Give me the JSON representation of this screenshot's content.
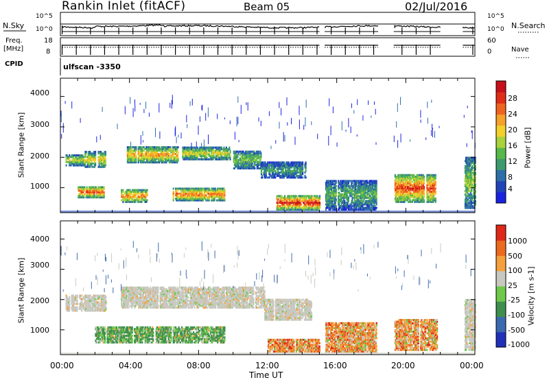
{
  "header": {
    "station": "Rankin Inlet (fitACF)",
    "beam": "Beam 05",
    "date": "02/Jul/2016"
  },
  "top_strips": {
    "nsky_label": "N.Sky",
    "nsearch_label": "N.Search",
    "nsky_ticks": [
      "10^5",
      "10^0"
    ],
    "nsearch_ticks": [
      "10^5",
      "10^0"
    ],
    "freq_label_1": "Freq.",
    "freq_label_2": "[MHz]",
    "freq_ticks": [
      "18",
      "8"
    ],
    "nave_label": "Nave",
    "nave_ticks": [
      "60",
      "0"
    ],
    "cpid_label": "CPID",
    "cpid_value": "ulfscan -3350"
  },
  "chart_data": [
    {
      "type": "heatmap",
      "quantity": "Power",
      "ylabel": "Slant Range [km]",
      "ylim": [
        180,
        4600
      ],
      "yticks": [
        "4000",
        "3000",
        "2000",
        "1000"
      ],
      "colorbar_label": "Power [dB]",
      "colorbar_ticks": [
        "28",
        "24",
        "20",
        "16",
        "12",
        "8",
        "4"
      ],
      "colorbar_colors": [
        "#1a22e0",
        "#2244b8",
        "#2e6fa8",
        "#3d9a6e",
        "#58b84a",
        "#a9d23c",
        "#f2d12c",
        "#f5a12a",
        "#ee6420",
        "#e12c18",
        "#c8101a"
      ],
      "features": [
        {
          "x0": 0.3,
          "x1": 1.4,
          "r0": 1700,
          "r1": 2050,
          "level": 0.55
        },
        {
          "x0": 1.4,
          "x1": 2.6,
          "r0": 1650,
          "r1": 2150,
          "level": 0.6
        },
        {
          "x0": 3.8,
          "x1": 6.8,
          "r0": 1800,
          "r1": 2300,
          "level": 0.7
        },
        {
          "x0": 7.0,
          "x1": 9.8,
          "r0": 1900,
          "r1": 2300,
          "level": 0.6
        },
        {
          "x0": 10.0,
          "x1": 11.6,
          "r0": 1600,
          "r1": 2200,
          "level": 0.45
        },
        {
          "x0": 11.6,
          "x1": 14.2,
          "r0": 1300,
          "r1": 1800,
          "level": 0.35
        },
        {
          "x0": 1.0,
          "x1": 2.5,
          "r0": 650,
          "r1": 1000,
          "level": 0.85
        },
        {
          "x0": 3.5,
          "x1": 5.0,
          "r0": 500,
          "r1": 900,
          "level": 0.75
        },
        {
          "x0": 6.5,
          "x1": 9.5,
          "r0": 550,
          "r1": 950,
          "level": 0.8
        },
        {
          "x0": 12.5,
          "x1": 15.0,
          "r0": 250,
          "r1": 700,
          "level": 0.95
        },
        {
          "x0": 15.2,
          "x1": 18.3,
          "r0": 250,
          "r1": 1200,
          "level": 0.4
        },
        {
          "x0": 19.3,
          "x1": 21.7,
          "r0": 500,
          "r1": 1400,
          "level": 0.85
        },
        {
          "x0": 23.4,
          "x1": 24.0,
          "r0": 300,
          "r1": 2000,
          "level": 0.5
        }
      ]
    },
    {
      "type": "heatmap",
      "quantity": "Velocity",
      "ylabel": "Slant Range [km]",
      "ylim": [
        180,
        4600
      ],
      "yticks": [
        "4000",
        "3000",
        "2000",
        "1000"
      ],
      "colorbar_label": "Velocity [m s-1]",
      "colorbar_ticks": [
        "1000",
        "500",
        "100",
        "25",
        "-25",
        "-100",
        "-500",
        "-1000"
      ],
      "colorbar_colors": [
        "#2030b8",
        "#3c6ab0",
        "#3f8f4e",
        "#6ec84a",
        "#c8c8c0",
        "#f5a03c",
        "#ec6a1e",
        "#e02818"
      ],
      "features": [
        {
          "x0": 0.3,
          "x1": 2.6,
          "r0": 1600,
          "r1": 2100,
          "level": 0.5
        },
        {
          "x0": 3.5,
          "x1": 11.8,
          "r0": 1700,
          "r1": 2400,
          "level": 0.5
        },
        {
          "x0": 11.8,
          "x1": 14.5,
          "r0": 1300,
          "r1": 2000,
          "level": 0.5
        },
        {
          "x0": 2.0,
          "x1": 9.5,
          "r0": 550,
          "r1": 1100,
          "level": 0.3
        },
        {
          "x0": 12.0,
          "x1": 15.0,
          "r0": 250,
          "r1": 650,
          "level": 0.7
        },
        {
          "x0": 15.3,
          "x1": 18.3,
          "r0": 250,
          "r1": 1200,
          "level": 0.6
        },
        {
          "x0": 19.3,
          "x1": 21.8,
          "r0": 300,
          "r1": 1300,
          "level": 0.8
        },
        {
          "x0": 23.4,
          "x1": 24.0,
          "r0": 300,
          "r1": 2000,
          "level": 0.5
        }
      ]
    }
  ],
  "x_axis": {
    "ticks": [
      "00:00",
      "04:00",
      "08:00",
      "12:00",
      "16:00",
      "20:00",
      "00:00"
    ],
    "label": "Time UT",
    "range_hours": [
      0,
      24
    ],
    "gaps": [
      [
        15.0,
        15.3
      ],
      [
        18.4,
        19.3
      ],
      [
        22.0,
        23.3
      ]
    ]
  }
}
